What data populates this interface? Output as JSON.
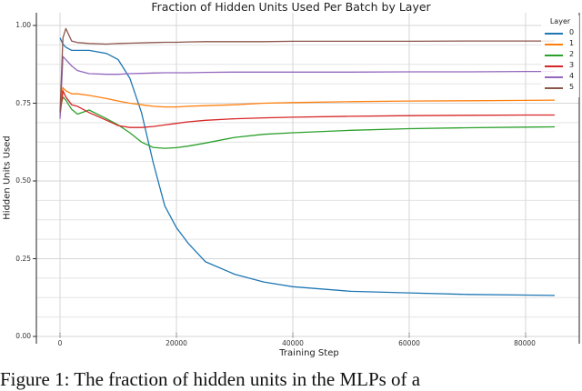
{
  "chart_data": {
    "type": "line",
    "title": "Fraction of Hidden Units Used Per Batch by Layer",
    "xlabel": "Training Step",
    "ylabel": "Hidden Units Used",
    "xlim": [
      -4000,
      89000
    ],
    "ylim": [
      0.0,
      1.0
    ],
    "x_ticks": [
      0,
      20000,
      40000,
      60000,
      80000
    ],
    "x_tick_labels": [
      "0",
      "20000",
      "40000",
      "60000",
      "80000"
    ],
    "y_ticks": [
      0.0,
      0.25,
      0.5,
      0.75,
      1.0
    ],
    "y_tick_labels": [
      "0.00",
      "0.25",
      "0.50",
      "0.75",
      "1.00"
    ],
    "grid": true,
    "legend": {
      "title": "Layer",
      "position": "upper right"
    },
    "x": [
      0,
      500,
      1000,
      2000,
      3000,
      5000,
      8000,
      10000,
      12000,
      14000,
      16000,
      18000,
      20000,
      22000,
      25000,
      30000,
      35000,
      40000,
      50000,
      60000,
      70000,
      80000,
      85000
    ],
    "series": [
      {
        "name": "0",
        "color": "#1f77b4",
        "values": [
          0.96,
          0.94,
          0.93,
          0.92,
          0.92,
          0.92,
          0.91,
          0.89,
          0.83,
          0.72,
          0.56,
          0.42,
          0.35,
          0.3,
          0.24,
          0.2,
          0.175,
          0.16,
          0.145,
          0.14,
          0.135,
          0.133,
          0.132
        ]
      },
      {
        "name": "1",
        "color": "#ff7f0e",
        "values": [
          0.73,
          0.8,
          0.79,
          0.78,
          0.78,
          0.775,
          0.765,
          0.757,
          0.75,
          0.745,
          0.74,
          0.738,
          0.738,
          0.74,
          0.742,
          0.745,
          0.75,
          0.752,
          0.755,
          0.757,
          0.758,
          0.759,
          0.76
        ]
      },
      {
        "name": "2",
        "color": "#2ca02c",
        "values": [
          0.73,
          0.77,
          0.76,
          0.73,
          0.715,
          0.728,
          0.7,
          0.68,
          0.655,
          0.625,
          0.608,
          0.605,
          0.607,
          0.612,
          0.622,
          0.64,
          0.65,
          0.655,
          0.663,
          0.668,
          0.671,
          0.673,
          0.674
        ]
      },
      {
        "name": "3",
        "color": "#d62728",
        "values": [
          0.71,
          0.79,
          0.77,
          0.745,
          0.74,
          0.72,
          0.695,
          0.678,
          0.672,
          0.672,
          0.675,
          0.68,
          0.685,
          0.69,
          0.695,
          0.7,
          0.703,
          0.705,
          0.708,
          0.71,
          0.711,
          0.712,
          0.712
        ]
      },
      {
        "name": "4",
        "color": "#9467bd",
        "values": [
          0.7,
          0.9,
          0.89,
          0.87,
          0.855,
          0.845,
          0.843,
          0.843,
          0.845,
          0.846,
          0.847,
          0.848,
          0.848,
          0.848,
          0.849,
          0.85,
          0.85,
          0.85,
          0.85,
          0.851,
          0.851,
          0.852,
          0.852
        ]
      },
      {
        "name": "5",
        "color": "#8c564b",
        "values": [
          0.72,
          0.96,
          0.99,
          0.95,
          0.945,
          0.942,
          0.94,
          0.942,
          0.943,
          0.944,
          0.945,
          0.946,
          0.946,
          0.947,
          0.948,
          0.948,
          0.948,
          0.949,
          0.949,
          0.949,
          0.95,
          0.95,
          0.95
        ]
      }
    ]
  },
  "caption": "Figure 1: The fraction of hidden units in the MLPs of a"
}
